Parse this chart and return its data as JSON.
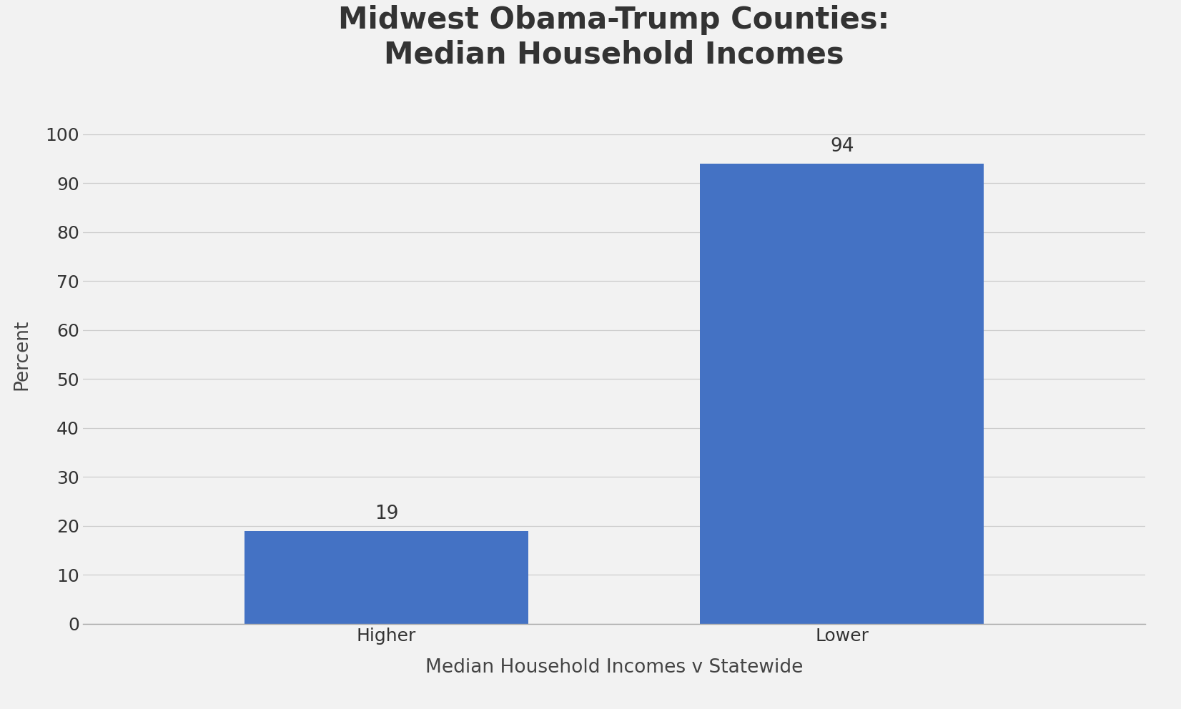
{
  "title": "Midwest Obama-Trump Counties:\nMedian Household Incomes",
  "xlabel": "Median Household Incomes v Statewide",
  "ylabel": "Percent",
  "categories": [
    "Higher",
    "Lower"
  ],
  "values": [
    19,
    94
  ],
  "bar_color": "#4472C4",
  "ylim": [
    0,
    110
  ],
  "yticks": [
    0,
    10,
    20,
    30,
    40,
    50,
    60,
    70,
    80,
    90,
    100
  ],
  "title_fontsize": 30,
  "label_fontsize": 19,
  "tick_fontsize": 18,
  "annotation_fontsize": 19,
  "background_color": "#f2f2f2",
  "bar_width": 0.28,
  "bar_positions": [
    0.3,
    0.75
  ]
}
